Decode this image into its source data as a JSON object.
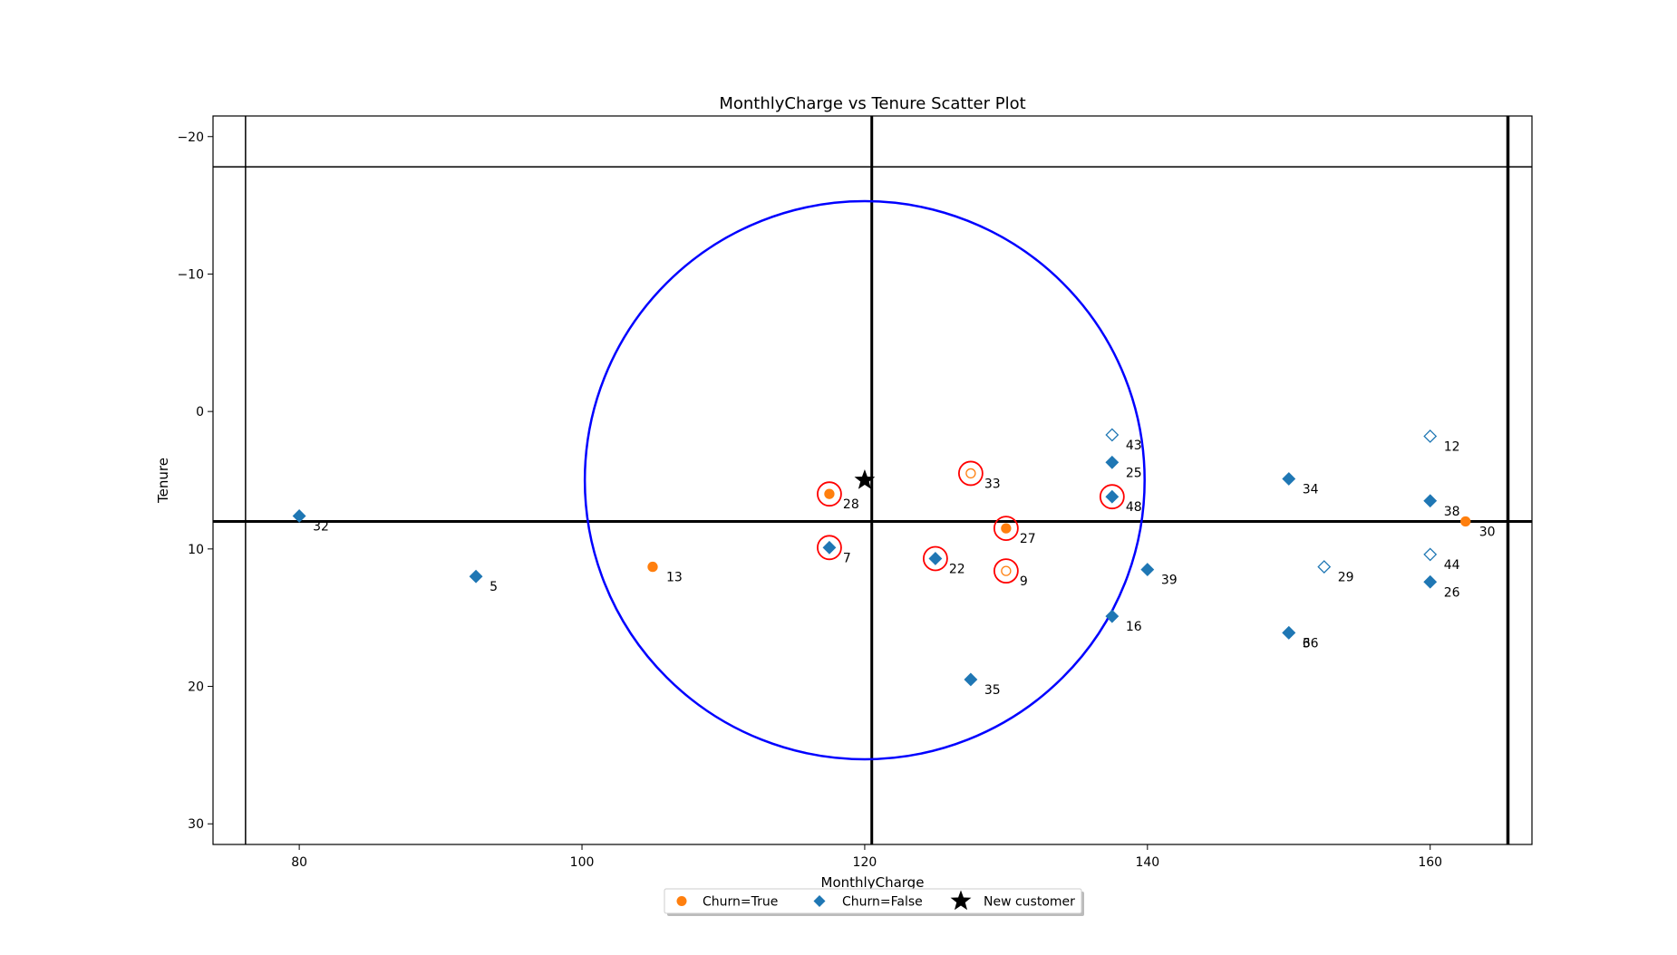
{
  "chart_data": {
    "type": "scatter",
    "title": "MonthlyCharge vs Tenure Scatter Plot",
    "xlabel": "MonthlyCharge",
    "ylabel": "Tenure",
    "xlim": [
      73.9,
      167.2
    ],
    "ylim": [
      31.5,
      -21.5
    ],
    "y_inverted": true,
    "xticks": [
      80,
      100,
      120,
      140,
      160
    ],
    "yticks": [
      -20,
      -10,
      0,
      10,
      20,
      30
    ],
    "ytick_labels": [
      "−20",
      "−10",
      "0",
      "10",
      "20",
      "30"
    ],
    "grid": false,
    "legend_position": "bottom-center, below axes",
    "legend": [
      {
        "label": "Churn=True",
        "marker": "circle",
        "color": "#ff7f0e"
      },
      {
        "label": "Churn=False",
        "marker": "diamond",
        "color": "#1f77b4"
      },
      {
        "label": "New customer",
        "marker": "star",
        "color": "#000000"
      }
    ],
    "colors": {
      "churn_true": "#ff7f0e",
      "churn_false": "#1f77b4",
      "neighbor_ring": "#ff0000",
      "radius_circle": "#0000ff",
      "new_customer": "#000000"
    },
    "new_customer": {
      "x": 120,
      "y": 5
    },
    "radius_circle": {
      "center_x": 120,
      "center_y": 5,
      "edge_x_min": 100.2,
      "edge_x_max": 139.8,
      "edge_y_min": -15.3,
      "edge_y_max": 25.3
    },
    "reference_lines": {
      "vertical_thin": 76.2,
      "vertical_thick_center": 120.5,
      "vertical_thick_right": 165.5,
      "horizontal_thin": -17.8,
      "horizontal_thick": 8
    },
    "points": [
      {
        "id": "32",
        "x": 80,
        "y": 7.6,
        "churn": false,
        "filled": true,
        "neighbor": false
      },
      {
        "id": "5",
        "x": 92.5,
        "y": 12,
        "churn": false,
        "filled": true,
        "neighbor": false
      },
      {
        "id": "13",
        "x": 105,
        "y": 11.3,
        "churn": true,
        "filled": true,
        "neighbor": false
      },
      {
        "id": "28",
        "x": 117.5,
        "y": 6,
        "churn": true,
        "filled": true,
        "neighbor": true
      },
      {
        "id": "7",
        "x": 117.5,
        "y": 9.9,
        "churn": false,
        "filled": true,
        "neighbor": true
      },
      {
        "id": "22",
        "x": 125,
        "y": 10.7,
        "churn": false,
        "filled": true,
        "neighbor": true
      },
      {
        "id": "33",
        "x": 127.5,
        "y": 4.5,
        "churn": true,
        "filled": false,
        "neighbor": true
      },
      {
        "id": "35",
        "x": 127.5,
        "y": 19.5,
        "churn": false,
        "filled": true,
        "neighbor": false
      },
      {
        "id": "27",
        "x": 130,
        "y": 8.5,
        "churn": true,
        "filled": true,
        "neighbor": true
      },
      {
        "id": "9",
        "x": 130,
        "y": 11.6,
        "churn": true,
        "filled": false,
        "neighbor": true
      },
      {
        "id": "43",
        "x": 137.5,
        "y": 1.7,
        "churn": false,
        "filled": false,
        "neighbor": false
      },
      {
        "id": "25",
        "x": 137.5,
        "y": 3.7,
        "churn": false,
        "filled": true,
        "neighbor": false
      },
      {
        "id": "48",
        "x": 137.5,
        "y": 6.2,
        "churn": false,
        "filled": true,
        "neighbor": true
      },
      {
        "id": "16",
        "x": 137.5,
        "y": 14.9,
        "churn": false,
        "filled": true,
        "neighbor": false
      },
      {
        "id": "39",
        "x": 140,
        "y": 11.5,
        "churn": false,
        "filled": true,
        "neighbor": false
      },
      {
        "id": "34",
        "x": 150,
        "y": 4.9,
        "churn": false,
        "filled": true,
        "neighbor": false
      },
      {
        "id": "6",
        "x": 150,
        "y": 16.1,
        "churn": false,
        "filled": true,
        "neighbor": false
      },
      {
        "id": "36",
        "x": 150,
        "y": 16.1,
        "churn": false,
        "filled": true,
        "neighbor": false
      },
      {
        "id": "29",
        "x": 152.5,
        "y": 11.3,
        "churn": false,
        "filled": false,
        "neighbor": false
      },
      {
        "id": "12",
        "x": 160,
        "y": 1.8,
        "churn": false,
        "filled": false,
        "neighbor": false
      },
      {
        "id": "38",
        "x": 160,
        "y": 6.5,
        "churn": false,
        "filled": true,
        "neighbor": false
      },
      {
        "id": "44",
        "x": 160,
        "y": 10.4,
        "churn": false,
        "filled": false,
        "neighbor": false
      },
      {
        "id": "26",
        "x": 160,
        "y": 12.4,
        "churn": false,
        "filled": true,
        "neighbor": false
      },
      {
        "id": "30",
        "x": 162.5,
        "y": 8,
        "churn": true,
        "filled": true,
        "neighbor": false
      }
    ]
  }
}
